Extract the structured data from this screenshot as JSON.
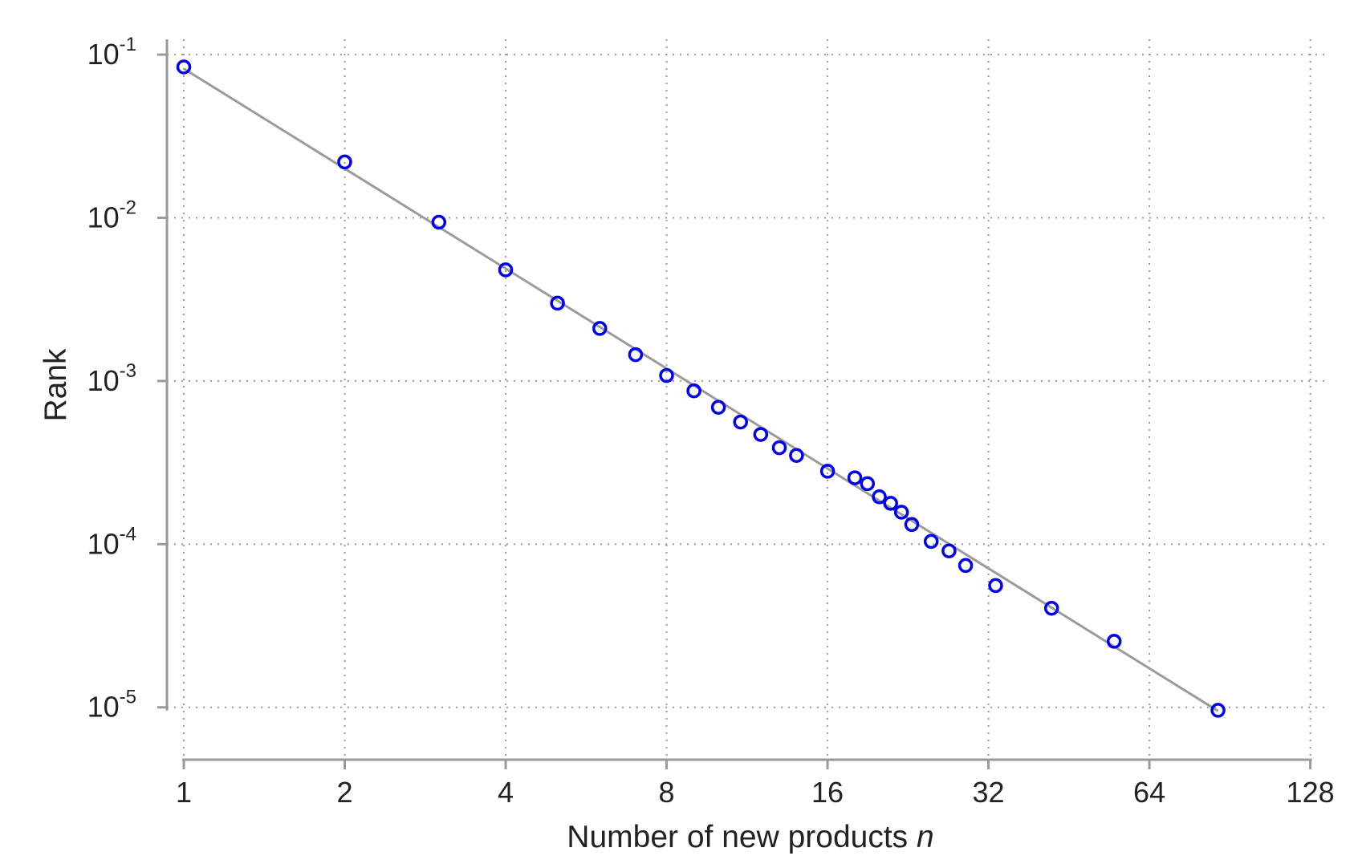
{
  "chart_data": {
    "type": "scatter",
    "title": "",
    "xlabel_text": "Number of new products ",
    "xlabel_var": "n",
    "ylabel": "Rank",
    "x_scale": "log2",
    "y_scale": "log10",
    "xlim": [
      0.93,
      135
    ],
    "ylim": [
      7.1e-06,
      0.12
    ],
    "x_ticks": [
      {
        "value": 1,
        "label": "1"
      },
      {
        "value": 2,
        "label": "2"
      },
      {
        "value": 4,
        "label": "4"
      },
      {
        "value": 8,
        "label": "8"
      },
      {
        "value": 16,
        "label": "16"
      },
      {
        "value": 32,
        "label": "32"
      },
      {
        "value": 64,
        "label": "64"
      },
      {
        "value": 128,
        "label": "128"
      }
    ],
    "y_ticks": [
      {
        "value": 0.1,
        "base": "10",
        "exp": "-1"
      },
      {
        "value": 0.01,
        "base": "10",
        "exp": "-2"
      },
      {
        "value": 0.001,
        "base": "10",
        "exp": "-3"
      },
      {
        "value": 0.0001,
        "base": "10",
        "exp": "-4"
      },
      {
        "value": 1e-05,
        "base": "10",
        "exp": "-5"
      }
    ],
    "grid": true,
    "legend": "none",
    "series": [
      {
        "kind": "points",
        "color": "#0000ee",
        "x": [
          1,
          2,
          3,
          4,
          5,
          6,
          7,
          8,
          9,
          10,
          11,
          12,
          13,
          14,
          16,
          18,
          19,
          20,
          21,
          22,
          23,
          25,
          27,
          29,
          33,
          42,
          55,
          86
        ],
        "y": [
          0.084,
          0.022,
          0.0094,
          0.0048,
          0.003,
          0.0021,
          0.00145,
          0.00108,
          0.00087,
          0.00069,
          0.00056,
          0.00047,
          0.00039,
          0.00035,
          0.00028,
          0.000255,
          0.000235,
          0.000195,
          0.000178,
          0.000157,
          0.000132,
          0.000104,
          9.1e-05,
          7.4e-05,
          5.58e-05,
          4.05e-05,
          2.54e-05,
          9.6e-06
        ]
      },
      {
        "kind": "fit-line",
        "color": "#9b9b9b",
        "x": [
          1,
          86
        ],
        "y": [
          0.082,
          9.5e-06
        ]
      }
    ]
  }
}
